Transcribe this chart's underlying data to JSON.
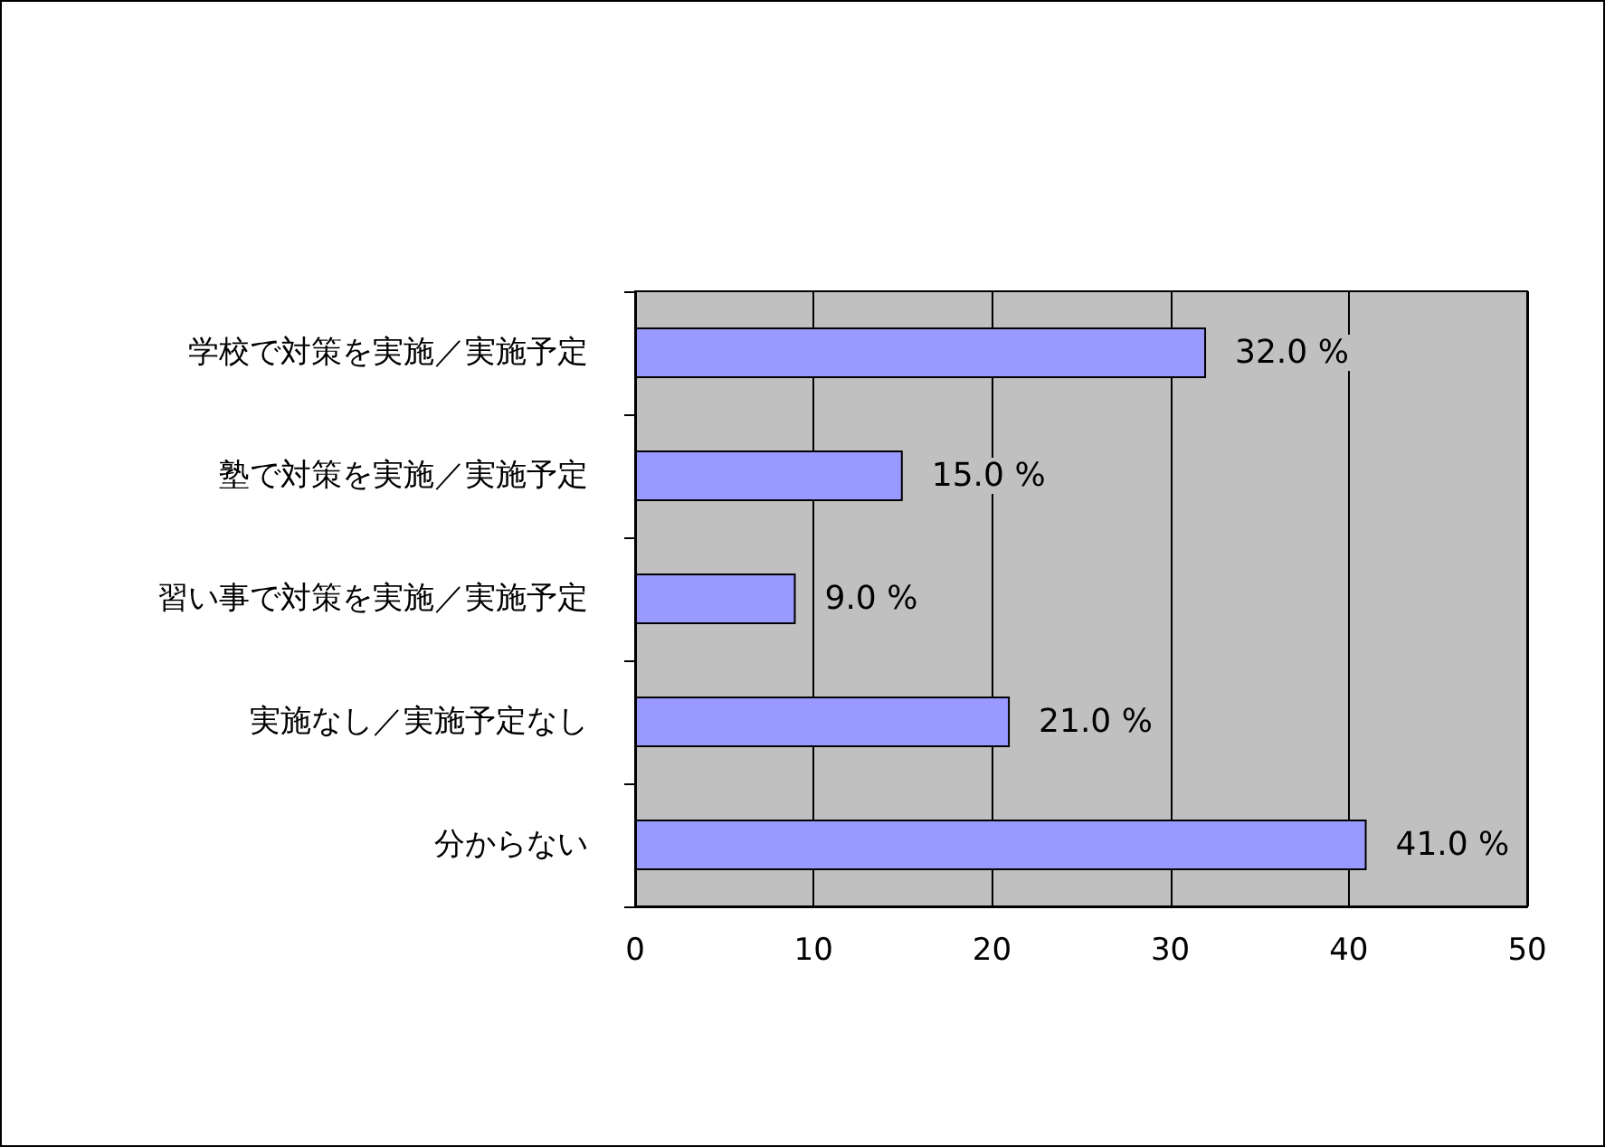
{
  "chart_data": {
    "type": "bar",
    "orientation": "horizontal",
    "categories": [
      "学校で対策を実施／実施予定",
      "塾で対策を実施／実施予定",
      "習い事で対策を実施／実施予定",
      "実施なし／実施予定なし",
      "分からない"
    ],
    "values": [
      32,
      15,
      9,
      21,
      41
    ],
    "value_labels": [
      "32.0 %",
      "15.0 %",
      "9.0 %",
      "21.0 %",
      "41.0 %"
    ],
    "color": "#9999ff",
    "xlim": [
      0,
      50
    ],
    "xticks": [
      0,
      10,
      20,
      30,
      40,
      50
    ],
    "grid": "x"
  }
}
